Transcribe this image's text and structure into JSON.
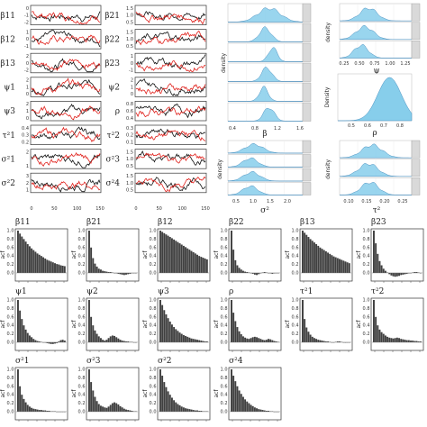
{
  "colors": {
    "chain1": "#111111",
    "chain2": "#e0201b",
    "density_fill": "#87ceeb",
    "density_line": "#4a90c0",
    "bar": "#404040",
    "strip": "#d9d9d9"
  },
  "chart_data": [
    {
      "type": "line",
      "panel": "trace-plots",
      "x_ticks": [
        "0",
        "50",
        "100",
        "150"
      ],
      "x_range": [
        0,
        150
      ],
      "series": [
        {
          "color": "black"
        },
        {
          "color": "red"
        }
      ],
      "rows_left": [
        {
          "label": "β11",
          "yticks": [
            "0",
            "-1",
            "-2"
          ]
        },
        {
          "label": "β12",
          "yticks": [
            "1",
            "0",
            "-1"
          ]
        },
        {
          "label": "β13",
          "yticks": [
            "2",
            "0",
            "-2"
          ]
        },
        {
          "label": "ψ1",
          "yticks": [
            "2",
            "1",
            "0"
          ]
        },
        {
          "label": "ψ3",
          "yticks": [
            "2",
            "1",
            "0"
          ]
        },
        {
          "label": "τ²1",
          "yticks": [
            "0.4",
            "0.3",
            "0.2"
          ]
        },
        {
          "label": "σ²1",
          "yticks": [
            "2",
            "1"
          ]
        },
        {
          "label": "σ²2",
          "yticks": [
            "3",
            "2",
            "1"
          ]
        }
      ],
      "rows_right": [
        {
          "label": "β21",
          "yticks": [
            "1.5",
            "1.0",
            "0.5"
          ]
        },
        {
          "label": "β22",
          "yticks": [
            "1.5",
            "1.0",
            "0.5"
          ]
        },
        {
          "label": "β23",
          "yticks": [
            "1",
            "0",
            "-1"
          ]
        },
        {
          "label": "ψ2",
          "yticks": [
            "2",
            "1",
            "0"
          ]
        },
        {
          "label": "ρ",
          "yticks": [
            "0.8",
            "0.6",
            "0.4"
          ]
        },
        {
          "label": "τ²2",
          "yticks": [
            "0.3",
            "0.2",
            "0.1"
          ]
        },
        {
          "label": "σ²3",
          "yticks": [
            "1.5",
            "1.0",
            "0.5"
          ]
        },
        {
          "label": "σ²4",
          "yticks": [
            "1.5",
            "1.0",
            "0.5"
          ]
        }
      ]
    },
    {
      "type": "area",
      "panel": "density-beta",
      "xlabel": "β",
      "ylabel": "density",
      "x_ticks": [
        "0.4",
        "0.8",
        "1.2",
        "1.6"
      ]
    },
    {
      "type": "area",
      "panel": "density-psi",
      "ylabel": "density",
      "xlabel": "ψ",
      "x_ticks": [
        "0.25",
        "0.50",
        "0.75",
        "1.00",
        "1.25"
      ]
    },
    {
      "type": "area",
      "panel": "density-rho",
      "ylabel": "Density",
      "xlabel": "ρ",
      "x_ticks": [
        "0.5",
        "0.6",
        "0.7",
        "0.8"
      ]
    },
    {
      "type": "area",
      "panel": "density-sigma",
      "ylabel": "density",
      "xlabel": "σ²",
      "x_ticks": [
        "0.5",
        "1.0",
        "1.5",
        "2.0"
      ]
    },
    {
      "type": "area",
      "panel": "density-tau",
      "ylabel": "density",
      "xlabel": "τ²",
      "x_ticks": [
        "0.10",
        "0.15",
        "0.20",
        "0.25"
      ]
    },
    {
      "type": "bar",
      "panel": "acf",
      "ylabel": "acf",
      "y_ticks": [
        "1.0",
        "0.8",
        "0.6",
        "0.4",
        "0.2",
        "0.0"
      ],
      "panels": [
        {
          "title": "β11",
          "values": [
            1,
            0.93,
            0.86,
            0.8,
            0.74,
            0.68,
            0.63,
            0.58,
            0.54,
            0.5,
            0.46,
            0.43,
            0.4,
            0.37,
            0.34,
            0.31,
            0.29,
            0.27,
            0.25,
            0.23,
            0.21,
            0.2,
            0.18,
            0.17,
            0.16
          ]
        },
        {
          "title": "β21",
          "values": [
            1,
            0.6,
            0.35,
            0.22,
            0.15,
            0.1,
            0.08,
            0.05,
            0.04,
            0.03,
            0.02,
            0.02,
            0.01,
            0,
            -0.01,
            -0.02,
            -0.03,
            -0.04,
            -0.05,
            -0.04,
            -0.03,
            -0.02,
            0,
            0,
            0
          ]
        },
        {
          "title": "β12",
          "values": [
            1,
            0.97,
            0.94,
            0.91,
            0.88,
            0.85,
            0.82,
            0.79,
            0.76,
            0.73,
            0.7,
            0.67,
            0.64,
            0.61,
            0.58,
            0.55,
            0.52,
            0.49,
            0.46,
            0.43,
            0.4,
            0.38,
            0.36,
            0.34,
            0.32
          ]
        },
        {
          "title": "β22",
          "values": [
            1,
            0.55,
            0.3,
            0.18,
            0.12,
            0.08,
            0.05,
            0.03,
            0.02,
            0.01,
            0,
            -0.02,
            -0.04,
            -0.05,
            -0.03,
            -0.01,
            0.01,
            0.02,
            0.01,
            0,
            -0.01,
            -0.02,
            -0.01,
            0,
            0
          ]
        },
        {
          "title": "β13",
          "values": [
            1,
            0.95,
            0.9,
            0.85,
            0.8,
            0.76,
            0.72,
            0.68,
            0.64,
            0.6,
            0.57,
            0.54,
            0.51,
            0.48,
            0.45,
            0.42,
            0.39,
            0.37,
            0.35,
            0.33,
            0.31,
            0.29,
            0.27,
            0.25,
            0.23
          ]
        },
        {
          "title": "β23",
          "values": [
            1,
            0.7,
            0.45,
            0.28,
            0.18,
            0.1,
            0.05,
            0.01,
            -0.03,
            -0.06,
            -0.08,
            -0.09,
            -0.08,
            -0.07,
            -0.05,
            -0.04,
            -0.03,
            -0.02,
            -0.01,
            0,
            0.01,
            0.02,
            0.02,
            0.01,
            0
          ]
        },
        {
          "title": "ψ1",
          "values": [
            1,
            0.75,
            0.55,
            0.4,
            0.3,
            0.22,
            0.16,
            0.12,
            0.08,
            0.05,
            0.03,
            0.02,
            0.01,
            0,
            -0.01,
            -0.02,
            -0.03,
            -0.04,
            -0.04,
            -0.03,
            -0.02,
            0.02,
            0.05,
            0.06,
            0.04
          ]
        },
        {
          "title": "ψ2",
          "values": [
            1,
            0.6,
            0.4,
            0.28,
            0.2,
            0.14,
            0.1,
            0.06,
            0.04,
            0.06,
            0.1,
            0.14,
            0.16,
            0.15,
            0.12,
            0.09,
            0.06,
            0.04,
            0.03,
            0.02,
            0.02,
            0.01,
            0.01,
            0,
            0
          ]
        },
        {
          "title": "ψ3",
          "values": [
            1,
            0.88,
            0.76,
            0.66,
            0.57,
            0.49,
            0.42,
            0.36,
            0.31,
            0.27,
            0.23,
            0.2,
            0.17,
            0.15,
            0.13,
            0.11,
            0.09,
            0.08,
            0.07,
            0.06,
            0.05,
            0.04,
            0.03,
            0.02,
            0.02
          ]
        },
        {
          "title": "ρ",
          "values": [
            1,
            0.7,
            0.5,
            0.36,
            0.26,
            0.19,
            0.14,
            0.11,
            0.09,
            0.08,
            0.1,
            0.12,
            0.13,
            0.12,
            0.1,
            0.08,
            0.06,
            0.05,
            0.06,
            0.08,
            0.07,
            0.05,
            0.03,
            0.02,
            0.01
          ]
        },
        {
          "title": "τ²1",
          "values": [
            1,
            0.55,
            0.35,
            0.25,
            0.18,
            0.13,
            0.1,
            0.08,
            0.06,
            0.05,
            0.04,
            0.03,
            0.02,
            0.02,
            0.01,
            0,
            0,
            0.01,
            0.02,
            0.02,
            0.01,
            0,
            -0.01,
            0,
            0
          ]
        },
        {
          "title": "τ²2",
          "values": [
            1,
            0.6,
            0.4,
            0.3,
            0.24,
            0.2,
            0.16,
            0.13,
            0.11,
            0.1,
            0.09,
            0.1,
            0.11,
            0.1,
            0.08,
            0.07,
            0.06,
            0.05,
            0.05,
            0.04,
            0.04,
            0.03,
            0.03,
            0.02,
            0.02
          ]
        },
        {
          "title": "σ²1",
          "values": [
            1,
            0.6,
            0.4,
            0.3,
            0.22,
            0.16,
            0.12,
            0.09,
            0.07,
            0.06,
            0.05,
            0.04,
            0.04,
            0.03,
            0.03,
            0.02,
            0.02,
            0.01,
            0.01,
            0.01,
            0,
            0,
            0,
            0,
            0
          ]
        },
        {
          "title": "σ²3",
          "values": [
            1,
            0.7,
            0.5,
            0.35,
            0.25,
            0.18,
            0.14,
            0.12,
            0.1,
            0.09,
            0.12,
            0.16,
            0.2,
            0.22,
            0.2,
            0.17,
            0.13,
            0.1,
            0.07,
            0.05,
            0.04,
            0.03,
            0.02,
            0.01,
            0.01
          ]
        },
        {
          "title": "σ²2",
          "values": [
            1,
            0.85,
            0.7,
            0.58,
            0.48,
            0.4,
            0.33,
            0.27,
            0.22,
            0.18,
            0.15,
            0.12,
            0.1,
            0.08,
            0.07,
            0.06,
            0.05,
            0.04,
            0.03,
            0.03,
            0.02,
            0.02,
            0.01,
            0.01,
            0.01
          ]
        },
        {
          "title": "σ²4",
          "values": [
            1,
            0.85,
            0.72,
            0.6,
            0.5,
            0.42,
            0.35,
            0.29,
            0.24,
            0.2,
            0.16,
            0.13,
            0.1,
            0.08,
            0.06,
            0.05,
            0.04,
            0.03,
            0.02,
            0.02,
            0.01,
            0.01,
            0,
            0,
            0
          ]
        }
      ]
    }
  ]
}
